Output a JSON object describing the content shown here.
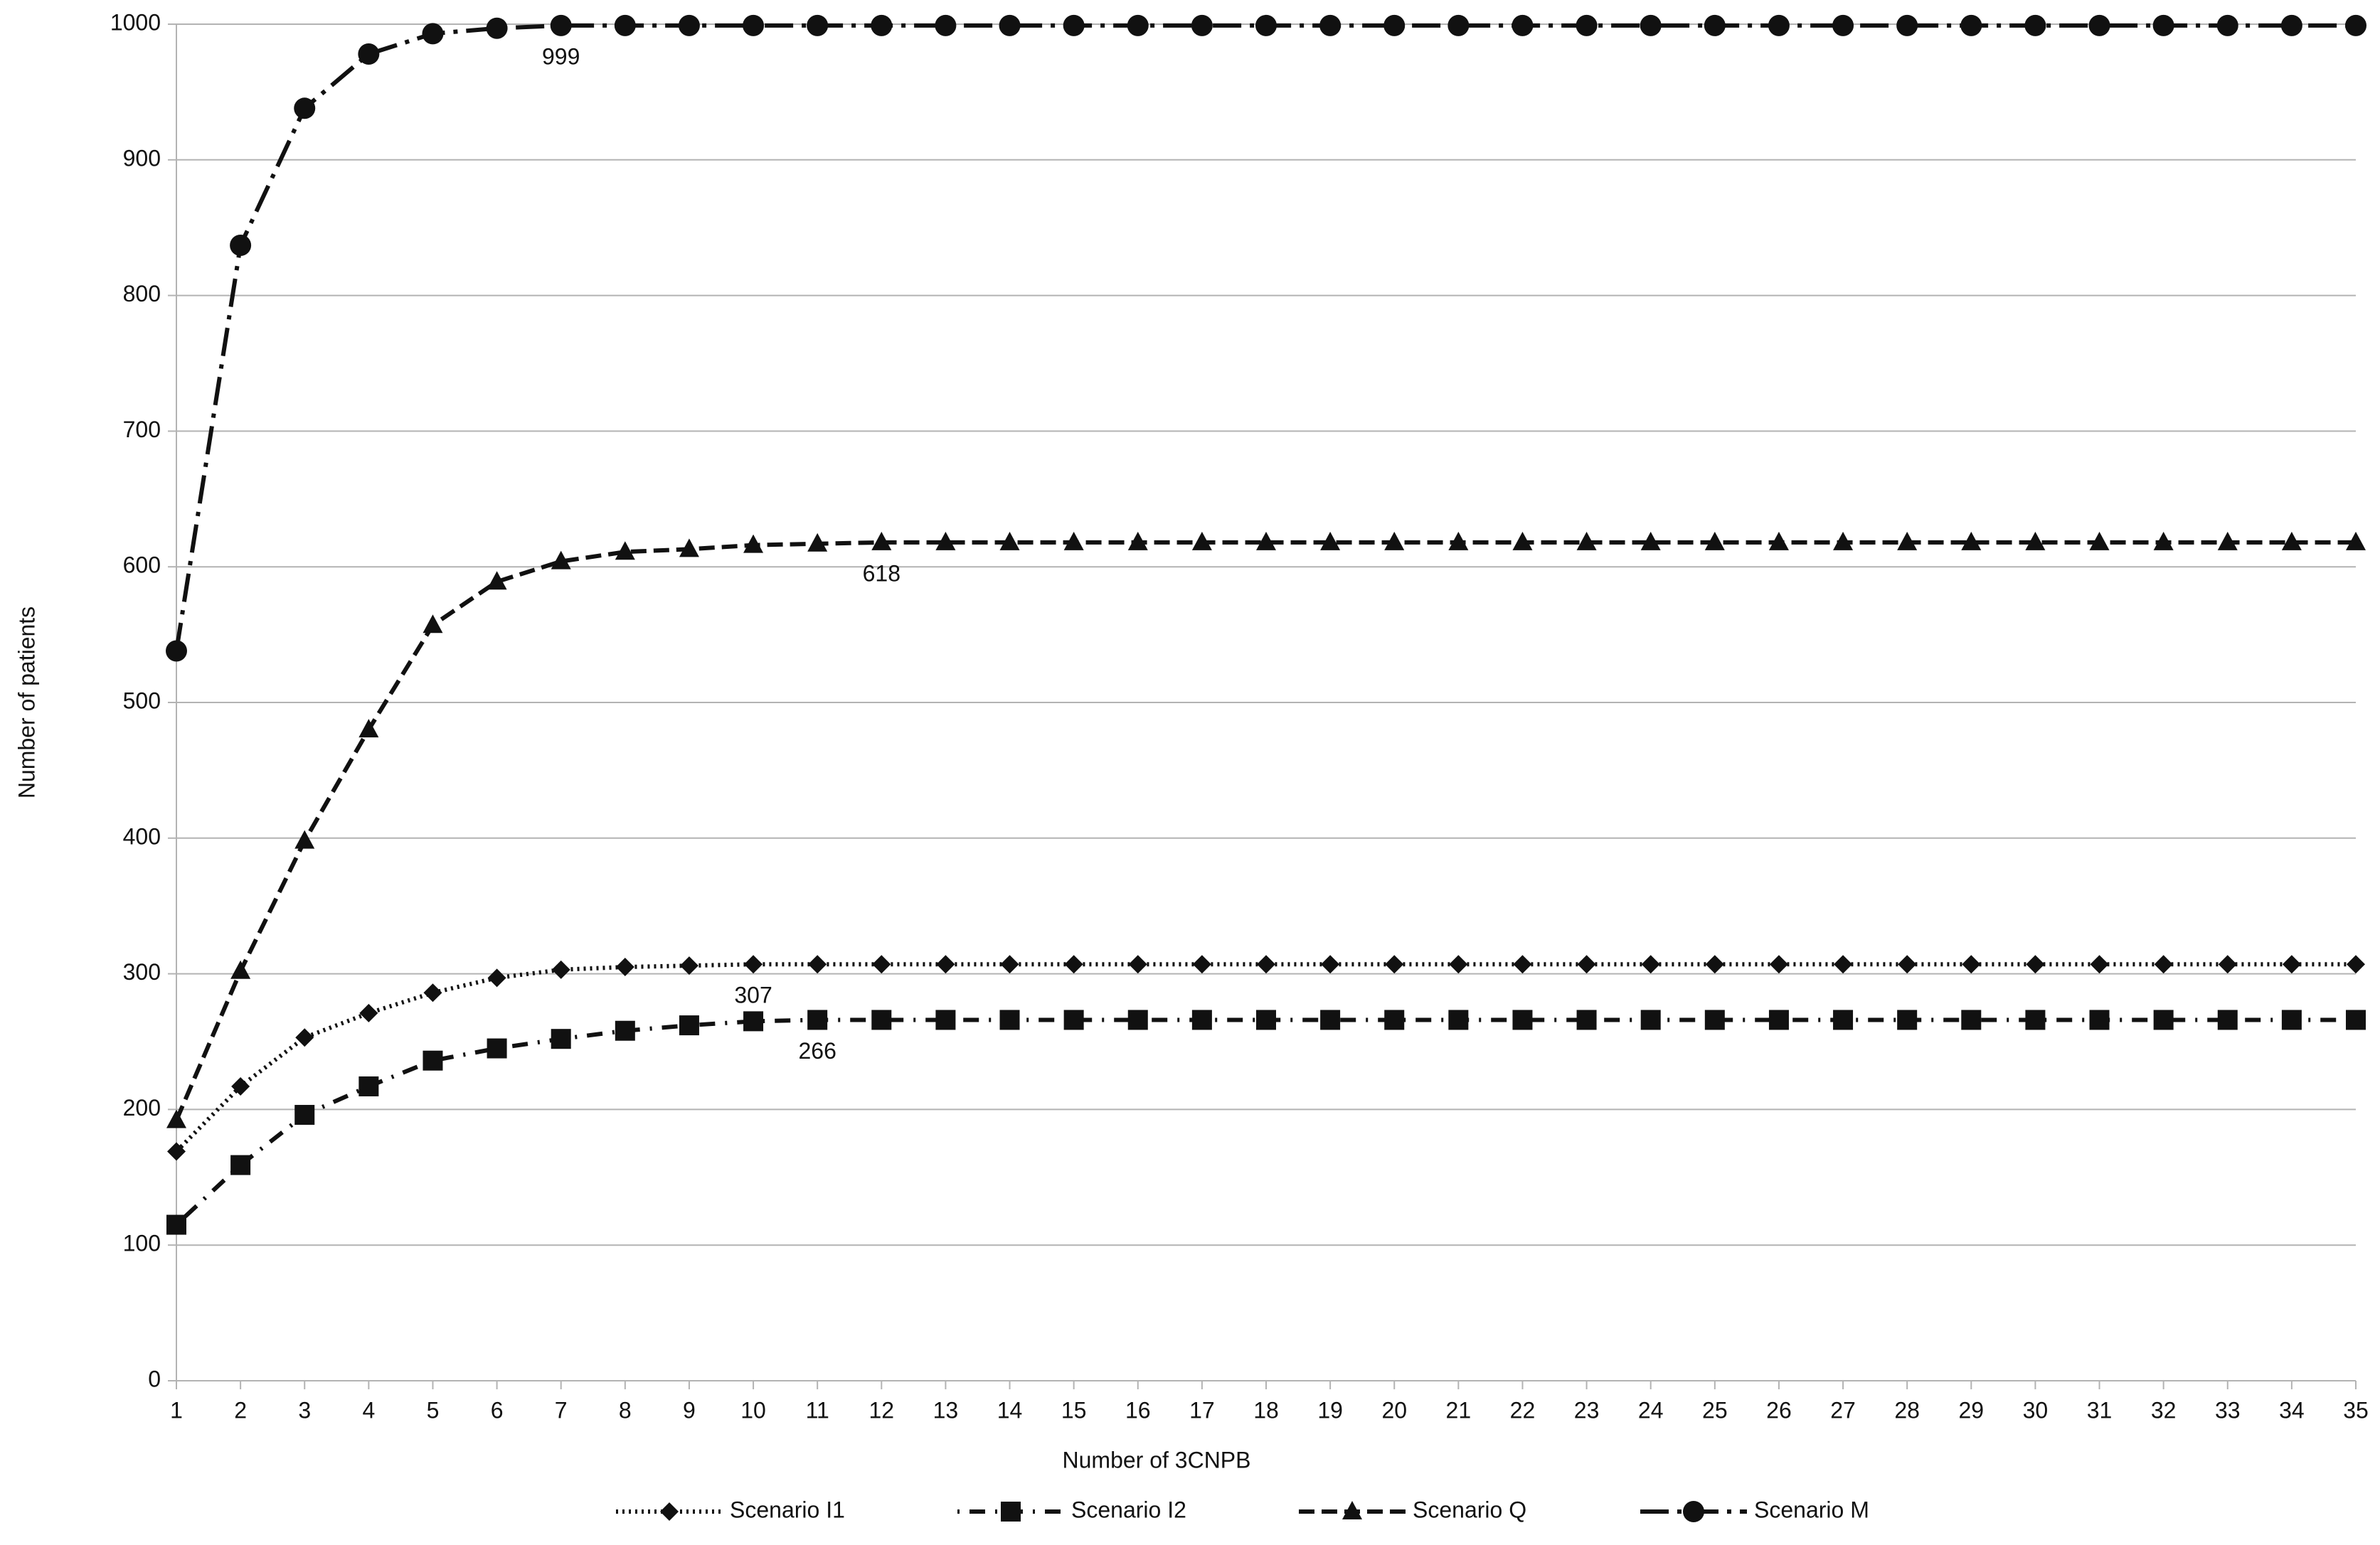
{
  "chart_data": {
    "type": "line",
    "x_label": "Number of 3CNPB",
    "y_label": "Number of patients",
    "x": [
      1,
      2,
      3,
      4,
      5,
      6,
      7,
      8,
      9,
      10,
      11,
      12,
      13,
      14,
      15,
      16,
      17,
      18,
      19,
      20,
      21,
      22,
      23,
      24,
      25,
      26,
      27,
      28,
      29,
      30,
      31,
      32,
      33,
      34,
      35
    ],
    "xlim": [
      1,
      35
    ],
    "xticks": [
      1,
      2,
      3,
      4,
      5,
      6,
      7,
      8,
      9,
      10,
      11,
      12,
      13,
      14,
      15,
      16,
      17,
      18,
      19,
      20,
      21,
      22,
      23,
      24,
      25,
      26,
      27,
      28,
      29,
      30,
      31,
      32,
      33,
      34,
      35
    ],
    "ylim": [
      0,
      1000
    ],
    "yticks": [
      0,
      100,
      200,
      300,
      400,
      500,
      600,
      700,
      800,
      900,
      1000
    ],
    "grid": true,
    "legend": "bottom",
    "series": [
      {
        "name": "Scenario I1",
        "color": "#111111",
        "marker": "diamond",
        "line_style": "dotted",
        "values": [
          169,
          217,
          253,
          271,
          286,
          297,
          303,
          305,
          306,
          307,
          307,
          307,
          307,
          307,
          307,
          307,
          307,
          307,
          307,
          307,
          307,
          307,
          307,
          307,
          307,
          307,
          307,
          307,
          307,
          307,
          307,
          307,
          307,
          307,
          307
        ]
      },
      {
        "name": "Scenario I2",
        "color": "#111111",
        "marker": "square",
        "line_style": "dot-dash",
        "values": [
          115,
          159,
          196,
          217,
          236,
          245,
          252,
          258,
          262,
          265,
          266,
          266,
          266,
          266,
          266,
          266,
          266,
          266,
          266,
          266,
          266,
          266,
          266,
          266,
          266,
          266,
          266,
          266,
          266,
          266,
          266,
          266,
          266,
          266,
          266
        ]
      },
      {
        "name": "Scenario Q",
        "color": "#111111",
        "marker": "triangle",
        "line_style": "dashed",
        "values": [
          192,
          302,
          398,
          480,
          557,
          589,
          604,
          611,
          613,
          616,
          617,
          618,
          618,
          618,
          618,
          618,
          618,
          618,
          618,
          618,
          618,
          618,
          618,
          618,
          618,
          618,
          618,
          618,
          618,
          618,
          618,
          618,
          618,
          618,
          618
        ]
      },
      {
        "name": "Scenario M",
        "color": "#111111",
        "marker": "circle",
        "line_style": "long-dash-dot",
        "values": [
          538,
          837,
          938,
          978,
          993,
          997,
          999,
          999,
          999,
          999,
          999,
          999,
          999,
          999,
          999,
          999,
          999,
          999,
          999,
          999,
          999,
          999,
          999,
          999,
          999,
          999,
          999,
          999,
          999,
          999,
          999,
          999,
          999,
          999,
          999
        ]
      }
    ],
    "annotations": [
      {
        "text": "999",
        "x": 7,
        "y": 999
      },
      {
        "text": "618",
        "x": 12,
        "y": 618
      },
      {
        "text": "307",
        "x": 10,
        "y": 307
      },
      {
        "text": "266",
        "x": 11,
        "y": 266
      }
    ]
  }
}
